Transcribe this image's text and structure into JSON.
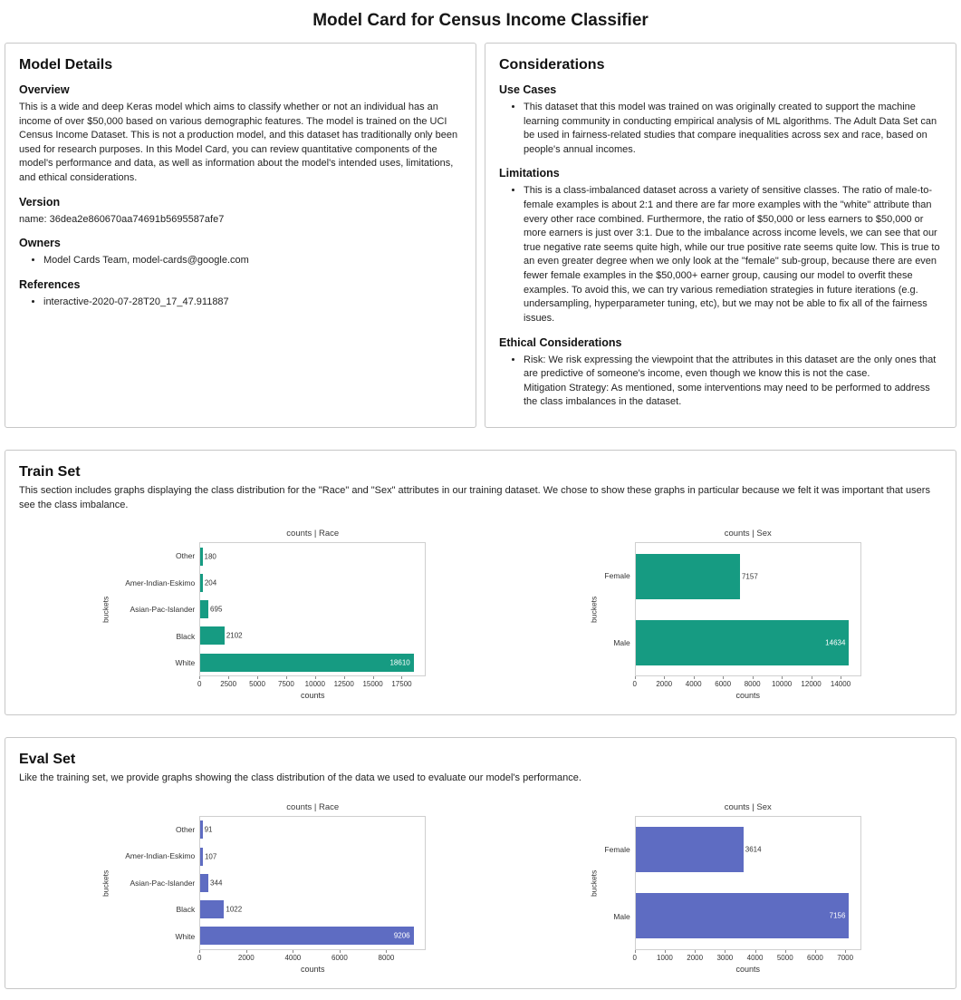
{
  "page": {
    "title": "Model Card for Census Income Classifier"
  },
  "model_details": {
    "title": "Model Details",
    "overview_heading": "Overview",
    "overview_text": "This is a wide and deep Keras model which aims to classify whether or not an individual has an income of over $50,000 based on various demographic features. The model is trained on the UCI Census Income Dataset. This is not a production model, and this dataset has traditionally only been used for research purposes. In this Model Card, you can review quantitative components of the model's performance and data, as well as information about the model's intended uses, limitations, and ethical considerations.",
    "version_heading": "Version",
    "version_text": "name: 36dea2e860670aa74691b5695587afe7",
    "owners_heading": "Owners",
    "owners": [
      "Model Cards Team, model-cards@google.com"
    ],
    "references_heading": "References",
    "references": [
      "interactive-2020-07-28T20_17_47.911887"
    ]
  },
  "considerations": {
    "title": "Considerations",
    "use_cases_heading": "Use Cases",
    "use_cases": [
      "This dataset that this model was trained on was originally created to support the machine learning community in conducting empirical analysis of ML algorithms. The Adult Data Set can be used in fairness-related studies that compare inequalities across sex and race, based on people's annual incomes."
    ],
    "limitations_heading": "Limitations",
    "limitations": [
      "This is a class-imbalanced dataset across a variety of sensitive classes. The ratio of male-to-female examples is about 2:1 and there are far more examples with the \"white\" attribute than every other race combined. Furthermore, the ratio of $50,000 or less earners to $50,000 or more earners is just over 3:1. Due to the imbalance across income levels, we can see that our true negative rate seems quite high, while our true positive rate seems quite low. This is true to an even greater degree when we only look at the \"female\" sub-group, because there are even fewer female examples in the $50,000+ earner group, causing our model to overfit these examples. To avoid this, we can try various remediation strategies in future iterations (e.g. undersampling, hyperparameter tuning, etc), but we may not be able to fix all of the fairness issues."
    ],
    "ethical_heading": "Ethical Considerations",
    "ethical": [
      "Risk: We risk expressing the viewpoint that the attributes in this dataset are the only ones that are predictive of someone's income, even though we know this is not the case.\nMitigation Strategy: As mentioned, some interventions may need to be performed to address the class imbalances in the dataset."
    ]
  },
  "train_set": {
    "title": "Train Set",
    "description": "This section includes graphs displaying the class distribution for the \"Race\" and \"Sex\" attributes in our training dataset. We chose to show these graphs in particular because we felt it was important that users see the class imbalance."
  },
  "eval_set": {
    "title": "Eval Set",
    "description": "Like the training set, we provide graphs showing the class distribution of the data we used to evaluate our model's performance."
  },
  "chart_data": [
    {
      "type": "bar",
      "orientation": "horizontal",
      "title": "counts | Race",
      "xlabel": "counts",
      "ylabel": "buckets",
      "categories": [
        "Other",
        "Amer-Indian-Eskimo",
        "Asian-Pac-Islander",
        "Black",
        "White"
      ],
      "values": [
        180,
        204,
        695,
        2102,
        18610
      ],
      "xticks": [
        0,
        2500,
        5000,
        7500,
        10000,
        12500,
        15000,
        17500
      ],
      "xmax": 19600,
      "color": "#169b82",
      "grid": false,
      "legend": false
    },
    {
      "type": "bar",
      "orientation": "horizontal",
      "title": "counts | Sex",
      "xlabel": "counts",
      "ylabel": "buckets",
      "categories": [
        "Female",
        "Male"
      ],
      "values": [
        7157,
        14634
      ],
      "xticks": [
        0,
        2000,
        4000,
        6000,
        8000,
        10000,
        12000,
        14000
      ],
      "xmax": 15400,
      "color": "#169b82",
      "grid": false,
      "legend": false
    },
    {
      "type": "bar",
      "orientation": "horizontal",
      "title": "counts | Race",
      "xlabel": "counts",
      "ylabel": "buckets",
      "categories": [
        "Other",
        "Amer-Indian-Eskimo",
        "Asian-Pac-Islander",
        "Black",
        "White"
      ],
      "values": [
        91,
        107,
        344,
        1022,
        9206
      ],
      "xticks": [
        0,
        2000,
        4000,
        6000,
        8000
      ],
      "xmax": 9700,
      "color": "#5e6cc2",
      "grid": false,
      "legend": false
    },
    {
      "type": "bar",
      "orientation": "horizontal",
      "title": "counts | Sex",
      "xlabel": "counts",
      "ylabel": "buckets",
      "categories": [
        "Female",
        "Male"
      ],
      "values": [
        3614,
        7156
      ],
      "xticks": [
        0,
        1000,
        2000,
        3000,
        4000,
        5000,
        6000,
        7000
      ],
      "xmax": 7530,
      "color": "#5e6cc2",
      "grid": false,
      "legend": false
    }
  ]
}
